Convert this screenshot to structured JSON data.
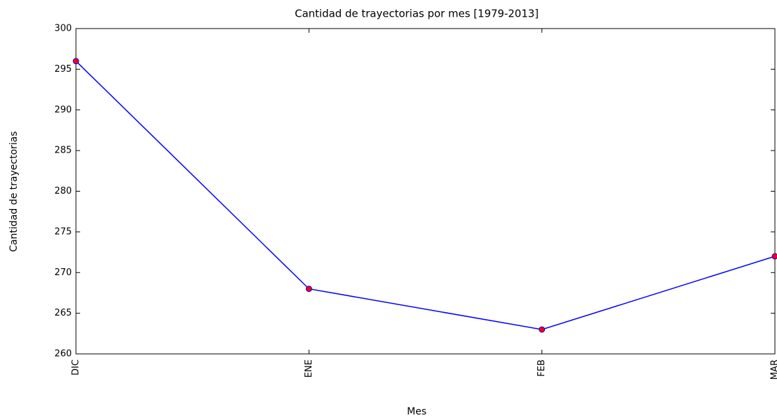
{
  "chart_data": {
    "type": "line",
    "title": "Cantidad de trayectorias por mes [1979-2013]",
    "x_label": "Mes",
    "y_label": "Cantidad de trayectorias",
    "categories": [
      "DIC",
      "ENE",
      "FEB",
      "MAR"
    ],
    "series": [
      {
        "name": "Cantidad de trayectorias",
        "color": "#0000ff",
        "marker_color": "#ff0000",
        "values": [
          296,
          268,
          263,
          272
        ]
      }
    ],
    "ylim": [
      260,
      300
    ],
    "yticks": [
      260,
      265,
      270,
      275,
      280,
      285,
      290,
      295,
      300
    ],
    "grid": false
  }
}
